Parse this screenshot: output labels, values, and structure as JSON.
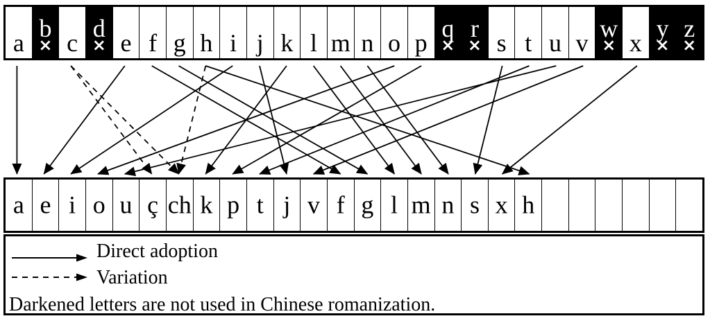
{
  "figure": {
    "top_row": [
      {
        "letter": "a",
        "darkened": false
      },
      {
        "letter": "b",
        "darkened": true
      },
      {
        "letter": "c",
        "darkened": false
      },
      {
        "letter": "d",
        "darkened": true
      },
      {
        "letter": "e",
        "darkened": false
      },
      {
        "letter": "f",
        "darkened": false
      },
      {
        "letter": "g",
        "darkened": false
      },
      {
        "letter": "h",
        "darkened": false
      },
      {
        "letter": "i",
        "darkened": false
      },
      {
        "letter": "j",
        "darkened": false
      },
      {
        "letter": "k",
        "darkened": false
      },
      {
        "letter": "l",
        "darkened": false
      },
      {
        "letter": "m",
        "darkened": false
      },
      {
        "letter": "n",
        "darkened": false
      },
      {
        "letter": "o",
        "darkened": false
      },
      {
        "letter": "p",
        "darkened": false
      },
      {
        "letter": "q",
        "darkened": true
      },
      {
        "letter": "r",
        "darkened": true
      },
      {
        "letter": "s",
        "darkened": false
      },
      {
        "letter": "t",
        "darkened": false
      },
      {
        "letter": "u",
        "darkened": false
      },
      {
        "letter": "v",
        "darkened": false
      },
      {
        "letter": "w",
        "darkened": true
      },
      {
        "letter": "x",
        "darkened": false
      },
      {
        "letter": "y",
        "darkened": true
      },
      {
        "letter": "z",
        "darkened": true
      }
    ],
    "not_used_mark": "×",
    "bottom_row": [
      "a",
      "e",
      "i",
      "o",
      "u",
      "ç",
      "ch",
      "k",
      "p",
      "t",
      "j",
      "v",
      "f",
      "g",
      "l",
      "m",
      "n",
      "s",
      "x",
      "h",
      "",
      "",
      "",
      "",
      "",
      ""
    ],
    "arrows": [
      {
        "from": "a",
        "from_col": 0,
        "to": "a",
        "to_col": 0,
        "style": "direct"
      },
      {
        "from": "c",
        "from_col": 2,
        "to": "ç",
        "to_col": 5,
        "style": "variation"
      },
      {
        "from": "c",
        "from_col": 2,
        "to": "ch",
        "to_col": 6,
        "style": "variation"
      },
      {
        "from": "e",
        "from_col": 4,
        "to": "e",
        "to_col": 1,
        "style": "direct"
      },
      {
        "from": "f",
        "from_col": 5,
        "to": "f",
        "to_col": 12,
        "style": "direct"
      },
      {
        "from": "g",
        "from_col": 6,
        "to": "g",
        "to_col": 13,
        "style": "direct"
      },
      {
        "from": "h",
        "from_col": 7,
        "to": "ch",
        "to_col": 6,
        "style": "variation"
      },
      {
        "from": "h",
        "from_col": 7,
        "to": "h",
        "to_col": 19,
        "style": "direct"
      },
      {
        "from": "i",
        "from_col": 8,
        "to": "i",
        "to_col": 2,
        "style": "direct"
      },
      {
        "from": "j",
        "from_col": 9,
        "to": "j",
        "to_col": 10,
        "style": "direct"
      },
      {
        "from": "k",
        "from_col": 10,
        "to": "k",
        "to_col": 7,
        "style": "direct"
      },
      {
        "from": "l",
        "from_col": 11,
        "to": "l",
        "to_col": 14,
        "style": "direct"
      },
      {
        "from": "m",
        "from_col": 12,
        "to": "m",
        "to_col": 15,
        "style": "direct"
      },
      {
        "from": "n",
        "from_col": 13,
        "to": "n",
        "to_col": 16,
        "style": "direct"
      },
      {
        "from": "o",
        "from_col": 14,
        "to": "o",
        "to_col": 3,
        "style": "direct"
      },
      {
        "from": "p",
        "from_col": 15,
        "to": "p",
        "to_col": 8,
        "style": "direct"
      },
      {
        "from": "s",
        "from_col": 18,
        "to": "s",
        "to_col": 17,
        "style": "direct"
      },
      {
        "from": "t",
        "from_col": 19,
        "to": "t",
        "to_col": 9,
        "style": "direct"
      },
      {
        "from": "u",
        "from_col": 20,
        "to": "u",
        "to_col": 4,
        "style": "direct"
      },
      {
        "from": "v",
        "from_col": 21,
        "to": "v",
        "to_col": 11,
        "style": "direct"
      },
      {
        "from": "x",
        "from_col": 23,
        "to": "x",
        "to_col": 18,
        "style": "direct"
      }
    ],
    "legend": {
      "direct_label": "Direct adoption",
      "variation_label": "Variation",
      "note": "Darkened letters are not used in Chinese romanization."
    },
    "colors": {
      "ink": "#000000",
      "background": "#ffffff",
      "darkened_cell": "#000000",
      "darkened_text": "#ffffff"
    }
  }
}
